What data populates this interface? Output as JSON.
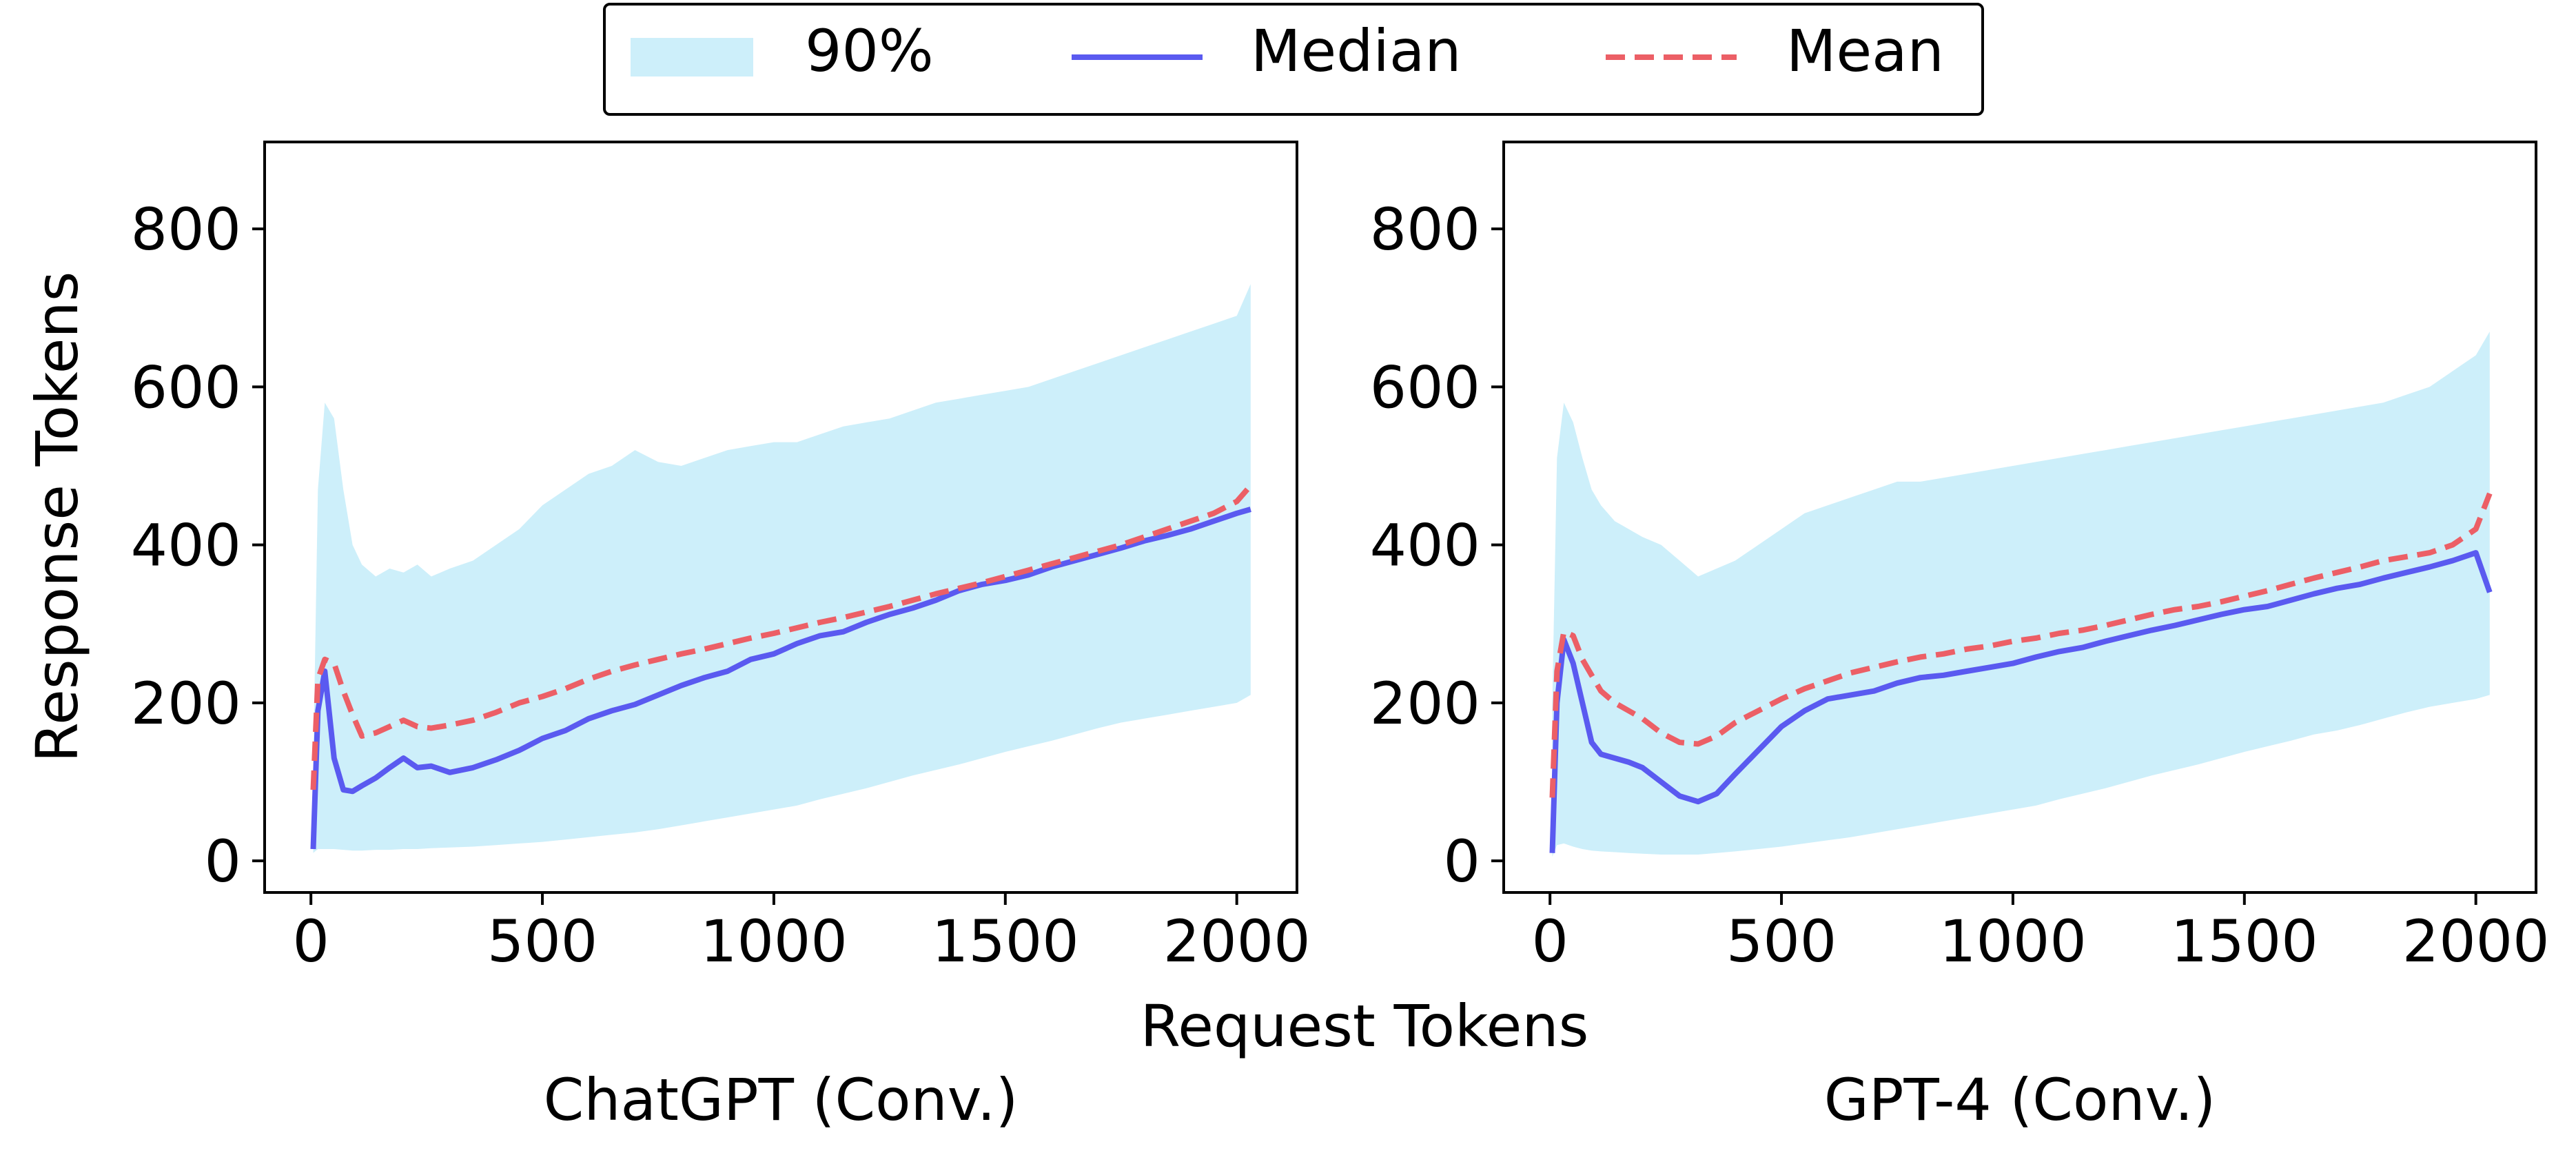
{
  "legend": {
    "band_label": "90%",
    "median_label": "Median",
    "mean_label": "Mean"
  },
  "shared_xlabel": "Request Tokens",
  "ylabel": "Response Tokens",
  "colors": {
    "band": "#cdeffa",
    "median": "#5a5af0",
    "mean": "#ec5f66",
    "axis": "#000000"
  },
  "chart_data": [
    {
      "type": "line",
      "title": "ChatGPT (Conv.)",
      "xlabel": "Request Tokens",
      "ylabel": "Response Tokens",
      "xlim": [
        -100,
        2130
      ],
      "ylim": [
        -40,
        910
      ],
      "xticks": [
        0,
        500,
        1000,
        1500,
        2000
      ],
      "yticks": [
        0,
        200,
        400,
        600,
        800
      ],
      "x": [
        5,
        15,
        30,
        50,
        70,
        90,
        110,
        140,
        170,
        200,
        230,
        260,
        300,
        350,
        400,
        450,
        500,
        550,
        600,
        650,
        700,
        750,
        800,
        850,
        900,
        950,
        1000,
        1050,
        1100,
        1150,
        1200,
        1250,
        1300,
        1350,
        1400,
        1450,
        1500,
        1550,
        1600,
        1650,
        1700,
        1750,
        1800,
        1850,
        1900,
        1950,
        2000,
        2030
      ],
      "series": [
        {
          "name": "90% upper",
          "values": [
            120,
            470,
            580,
            560,
            470,
            400,
            375,
            360,
            370,
            365,
            375,
            360,
            370,
            380,
            400,
            420,
            450,
            470,
            490,
            500,
            520,
            505,
            500,
            510,
            520,
            525,
            530,
            530,
            540,
            550,
            555,
            560,
            570,
            580,
            585,
            590,
            595,
            600,
            610,
            620,
            630,
            640,
            650,
            660,
            670,
            680,
            690,
            730
          ]
        },
        {
          "name": "90% lower",
          "values": [
            10,
            15,
            15,
            15,
            14,
            13,
            13,
            14,
            14,
            15,
            15,
            16,
            17,
            18,
            20,
            22,
            24,
            27,
            30,
            33,
            36,
            40,
            45,
            50,
            55,
            60,
            65,
            70,
            78,
            85,
            92,
            100,
            108,
            115,
            122,
            130,
            138,
            145,
            152,
            160,
            168,
            175,
            180,
            185,
            190,
            195,
            200,
            210
          ]
        },
        {
          "name": "Median",
          "values": [
            15,
            190,
            240,
            130,
            90,
            88,
            95,
            105,
            118,
            130,
            118,
            120,
            112,
            118,
            128,
            140,
            155,
            165,
            180,
            190,
            198,
            210,
            222,
            232,
            240,
            255,
            262,
            275,
            285,
            290,
            302,
            312,
            320,
            330,
            342,
            350,
            355,
            362,
            372,
            380,
            388,
            396,
            405,
            412,
            420,
            430,
            440,
            445
          ]
        },
        {
          "name": "Mean",
          "values": [
            90,
            230,
            255,
            250,
            215,
            185,
            158,
            162,
            170,
            178,
            170,
            168,
            172,
            178,
            188,
            200,
            208,
            218,
            230,
            240,
            248,
            255,
            262,
            268,
            275,
            282,
            288,
            295,
            302,
            308,
            315,
            322,
            330,
            338,
            345,
            352,
            360,
            368,
            376,
            384,
            392,
            400,
            410,
            420,
            430,
            440,
            455,
            475
          ]
        }
      ]
    },
    {
      "type": "line",
      "title": "GPT-4 (Conv.)",
      "xlabel": "Request Tokens",
      "ylabel": "Response Tokens",
      "xlim": [
        -100,
        2130
      ],
      "ylim": [
        -40,
        910
      ],
      "xticks": [
        0,
        500,
        1000,
        1500,
        2000
      ],
      "yticks": [
        0,
        200,
        400,
        600,
        800
      ],
      "x": [
        5,
        15,
        30,
        50,
        70,
        90,
        110,
        140,
        170,
        200,
        240,
        280,
        320,
        360,
        400,
        450,
        500,
        550,
        600,
        650,
        700,
        750,
        800,
        850,
        900,
        950,
        1000,
        1050,
        1100,
        1150,
        1200,
        1250,
        1300,
        1350,
        1400,
        1450,
        1500,
        1550,
        1600,
        1650,
        1700,
        1750,
        1800,
        1850,
        1900,
        1950,
        2000,
        2030
      ],
      "series": [
        {
          "name": "90% upper",
          "values": [
            200,
            510,
            580,
            555,
            510,
            470,
            450,
            430,
            420,
            410,
            400,
            380,
            360,
            370,
            380,
            400,
            420,
            440,
            450,
            460,
            470,
            480,
            480,
            485,
            490,
            495,
            500,
            505,
            510,
            515,
            520,
            525,
            530,
            535,
            540,
            545,
            550,
            555,
            560,
            565,
            570,
            575,
            580,
            590,
            600,
            620,
            640,
            670
          ]
        },
        {
          "name": "90% lower",
          "values": [
            5,
            20,
            22,
            18,
            15,
            13,
            12,
            11,
            10,
            9,
            8,
            8,
            8,
            10,
            12,
            15,
            18,
            22,
            26,
            30,
            35,
            40,
            45,
            50,
            55,
            60,
            65,
            70,
            78,
            85,
            92,
            100,
            108,
            115,
            122,
            130,
            138,
            145,
            152,
            160,
            165,
            172,
            180,
            188,
            195,
            200,
            205,
            210
          ]
        },
        {
          "name": "Median",
          "values": [
            10,
            200,
            280,
            250,
            200,
            150,
            135,
            130,
            125,
            118,
            100,
            82,
            75,
            85,
            110,
            140,
            170,
            190,
            205,
            210,
            215,
            225,
            232,
            235,
            240,
            245,
            250,
            258,
            265,
            270,
            278,
            285,
            292,
            298,
            305,
            312,
            318,
            322,
            330,
            338,
            345,
            350,
            358,
            365,
            372,
            380,
            390,
            340
          ]
        },
        {
          "name": "Mean",
          "values": [
            80,
            240,
            290,
            285,
            255,
            235,
            215,
            200,
            190,
            180,
            162,
            150,
            148,
            158,
            175,
            190,
            205,
            218,
            228,
            238,
            245,
            252,
            258,
            262,
            268,
            272,
            278,
            282,
            288,
            292,
            298,
            305,
            312,
            318,
            322,
            328,
            335,
            342,
            350,
            358,
            365,
            372,
            380,
            385,
            390,
            400,
            420,
            465
          ]
        }
      ]
    }
  ]
}
